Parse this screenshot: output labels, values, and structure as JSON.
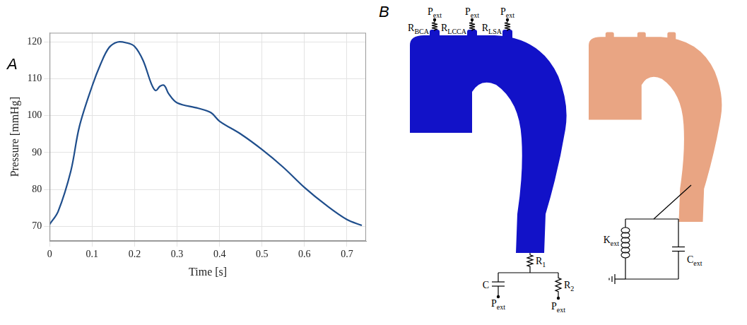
{
  "panel_labels": [
    "A",
    "B"
  ],
  "chart_data": {
    "type": "line",
    "x_label": "Time [s]",
    "y_label": "Pressure [mmHg]",
    "x": [
      0,
      0.02,
      0.05,
      0.07,
      0.1,
      0.12,
      0.14,
      0.16,
      0.18,
      0.2,
      0.22,
      0.24,
      0.25,
      0.26,
      0.27,
      0.28,
      0.3,
      0.35,
      0.38,
      0.4,
      0.45,
      0.5,
      0.55,
      0.6,
      0.65,
      0.7,
      0.735
    ],
    "values": [
      70.5,
      74,
      85,
      97,
      108,
      114,
      118.5,
      120,
      119.8,
      118.8,
      115,
      108.5,
      106.8,
      108,
      108.2,
      106,
      103.5,
      102,
      100.8,
      98.5,
      95,
      90.8,
      86,
      80.5,
      75.8,
      71.8,
      70.2
    ],
    "color": "#1f4e8c",
    "xlim": [
      0,
      0.745
    ],
    "ylim": [
      66,
      122.5
    ],
    "xticks": [
      0,
      0.1,
      0.2,
      0.3,
      0.4,
      0.5,
      0.6,
      0.7
    ],
    "yticks": [
      70,
      80,
      90,
      100,
      110,
      120
    ],
    "grid": true
  },
  "diagram": {
    "branches": [
      {
        "resistance": {
          "symbol": "R",
          "subscript": "BCA"
        },
        "pressure": {
          "symbol": "P",
          "subscript": "ext"
        }
      },
      {
        "resistance": {
          "symbol": "R",
          "subscript": "LCCA"
        },
        "pressure": {
          "symbol": "P",
          "subscript": "ext"
        }
      },
      {
        "resistance": {
          "symbol": "R",
          "subscript": "LSA"
        },
        "pressure": {
          "symbol": "P",
          "subscript": "ext"
        }
      }
    ],
    "outlet": {
      "proximal_resistance": {
        "symbol": "R",
        "subscript": "1"
      },
      "capacitance": {
        "symbol": "C"
      },
      "distal_resistance": {
        "symbol": "R",
        "subscript": "2"
      },
      "capacitance_pressure": {
        "symbol": "P",
        "subscript": "ext"
      },
      "resistance_pressure": {
        "symbol": "P",
        "subscript": "ext"
      }
    },
    "wall_support": {
      "stiffness": {
        "symbol": "K",
        "subscript": "ext"
      },
      "damping": {
        "symbol": "C",
        "subscript": "ext"
      }
    }
  }
}
